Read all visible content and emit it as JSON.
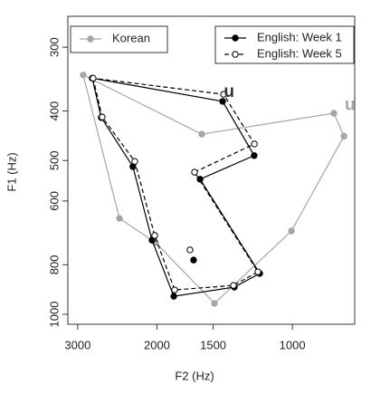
{
  "chart_data": {
    "type": "polygon",
    "xlabel": "F2 (Hz)",
    "ylabel": "F1 (Hz)",
    "xscale": "log",
    "yscale": "log",
    "xreversed": true,
    "yreversed": true,
    "xlim": [
      3155,
      727
    ],
    "ylim": [
      261,
      1046
    ],
    "xticks": [
      3000,
      2000,
      1500,
      1000
    ],
    "yticks": [
      300,
      400,
      500,
      600,
      800,
      1000
    ],
    "series": [
      {
        "name": "Korean",
        "color": "#a6a6a6",
        "dash": false,
        "marker": "filled",
        "x": [
          2917,
          2423,
          2014,
          1490,
          1005,
          768,
          809,
          1590
        ],
        "values": [
          340,
          649,
          724,
          952,
          687,
          448,
          404,
          444
        ]
      },
      {
        "name": "English: Week 1",
        "color": "#000000",
        "dash": false,
        "marker": "filled",
        "x": [
          2785,
          2660,
          2262,
          2051,
          1835,
          1346,
          1182,
          1604,
          1216,
          1429
        ],
        "values": [
          345,
          412,
          514,
          716,
          922,
          885,
          832,
          544,
          489,
          383
        ],
        "extra_point": {
          "x": 1658,
          "y": 783
        }
      },
      {
        "name": "English: Week 5",
        "color": "#000000",
        "dash": true,
        "marker": "open",
        "x": [
          2773,
          2647,
          2240,
          2023,
          1827,
          1352,
          1193,
          1650,
          1215,
          1422
        ],
        "values": [
          345,
          411,
          502,
          701,
          896,
          878,
          826,
          527,
          464,
          371
        ],
        "extra_point": {
          "x": 1689,
          "y": 748
        }
      }
    ],
    "annotations": [
      {
        "text": "u",
        "x": 1420,
        "y": 368,
        "color": "#333333"
      },
      {
        "text": "u",
        "x": 765,
        "y": 390,
        "color": "#a6a6a6"
      }
    ]
  }
}
